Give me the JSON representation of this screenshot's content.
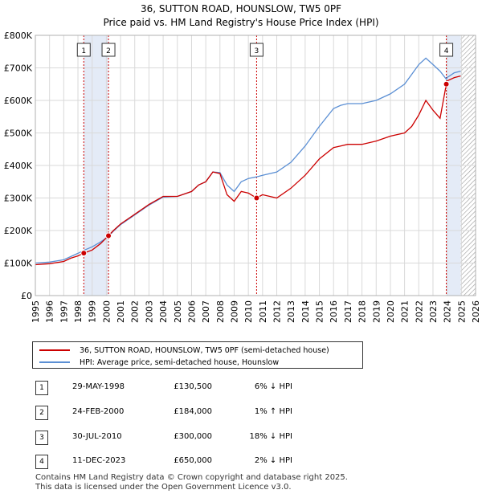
{
  "title": "36, SUTTON ROAD, HOUNSLOW, TW5 0PF",
  "subtitle": "Price paid vs. HM Land Registry's House Price Index (HPI)",
  "chart_data": {
    "type": "line",
    "title": "36, SUTTON ROAD, HOUNSLOW, TW5 0PF",
    "xlim": [
      1995,
      2026
    ],
    "ylim": [
      0,
      800000
    ],
    "x_ticks": [
      1995,
      1996,
      1997,
      1998,
      1999,
      2000,
      2001,
      2002,
      2003,
      2004,
      2005,
      2006,
      2007,
      2008,
      2009,
      2010,
      2011,
      2012,
      2013,
      2014,
      2015,
      2016,
      2017,
      2018,
      2019,
      2020,
      2021,
      2022,
      2023,
      2024,
      2025,
      2026
    ],
    "x_tick_labels": [
      "1995",
      "1996",
      "1997",
      "1998",
      "1999",
      "2000",
      "2001",
      "2002",
      "2003",
      "2004",
      "2005",
      "2006",
      "2007",
      "2008",
      "2009",
      "2010",
      "2011",
      "2012",
      "2013",
      "2014",
      "2015",
      "2016",
      "2017",
      "2018",
      "2019",
      "2020",
      "2021",
      "2022",
      "2023",
      "2024",
      "2025",
      "2026"
    ],
    "y_ticks": [
      0,
      100000,
      200000,
      300000,
      400000,
      500000,
      600000,
      700000,
      800000
    ],
    "y_tick_labels": [
      "£0",
      "£100K",
      "£200K",
      "£300K",
      "£400K",
      "£500K",
      "£600K",
      "£700K",
      "£800K"
    ],
    "grid": true,
    "series": [
      {
        "name": "36, SUTTON ROAD, HOUNSLOW, TW5 0PF (semi-detached house)",
        "color": "#cc0000",
        "x": [
          1995.0,
          1996.0,
          1997.0,
          1997.5,
          1998.0,
          1998.41,
          1999.0,
          1999.6,
          2000.15,
          2000.5,
          2001.0,
          2002.0,
          2003.0,
          2004.0,
          2005.0,
          2006.0,
          2006.5,
          2007.0,
          2007.5,
          2008.0,
          2008.5,
          2009.0,
          2009.5,
          2010.0,
          2010.58,
          2011.0,
          2012.0,
          2013.0,
          2014.0,
          2015.0,
          2016.0,
          2016.5,
          2017.0,
          2018.0,
          2019.0,
          2020.0,
          2021.0,
          2021.5,
          2022.0,
          2022.5,
          2023.0,
          2023.5,
          2023.94,
          2024.0,
          2024.5,
          2024.95
        ],
        "y": [
          95000,
          98000,
          105000,
          115000,
          122000,
          130500,
          140000,
          160000,
          184000,
          200000,
          220000,
          250000,
          280000,
          305000,
          305000,
          320000,
          340000,
          350000,
          380000,
          375000,
          310000,
          290000,
          320000,
          315000,
          300000,
          310000,
          300000,
          330000,
          370000,
          420000,
          455000,
          460000,
          465000,
          465000,
          475000,
          490000,
          500000,
          520000,
          555000,
          600000,
          570000,
          545000,
          650000,
          660000,
          670000,
          675000
        ]
      },
      {
        "name": "HPI: Average price, semi-detached house, Hounslow",
        "color": "#5b8fd4",
        "x": [
          1995.0,
          1996.0,
          1997.0,
          1997.5,
          1998.0,
          1998.41,
          1999.0,
          1999.6,
          2000.15,
          2000.5,
          2001.0,
          2002.0,
          2003.0,
          2004.0,
          2005.0,
          2006.0,
          2006.5,
          2007.0,
          2007.5,
          2008.0,
          2008.5,
          2009.0,
          2009.5,
          2010.0,
          2010.58,
          2011.0,
          2012.0,
          2013.0,
          2014.0,
          2015.0,
          2016.0,
          2016.5,
          2017.0,
          2018.0,
          2019.0,
          2020.0,
          2021.0,
          2021.5,
          2022.0,
          2022.5,
          2023.0,
          2023.5,
          2023.94,
          2024.0,
          2024.5,
          2024.95
        ],
        "y": [
          100000,
          103000,
          110000,
          120000,
          130000,
          139000,
          150000,
          165000,
          182000,
          198000,
          218000,
          248000,
          278000,
          303000,
          305000,
          320000,
          340000,
          350000,
          380000,
          378000,
          340000,
          320000,
          350000,
          360000,
          365000,
          370000,
          380000,
          410000,
          460000,
          520000,
          575000,
          585000,
          590000,
          590000,
          600000,
          620000,
          650000,
          680000,
          710000,
          730000,
          710000,
          690000,
          665000,
          670000,
          685000,
          690000
        ]
      }
    ],
    "sales": [
      {
        "label": "1",
        "x": 1998.41,
        "y": 130500
      },
      {
        "label": "2",
        "x": 2000.15,
        "y": 184000
      },
      {
        "label": "3",
        "x": 2010.58,
        "y": 300000
      },
      {
        "label": "4",
        "x": 2023.94,
        "y": 650000
      }
    ],
    "shaded_ranges": [
      [
        1998.41,
        2000.15
      ],
      [
        2023.94,
        2024.95
      ]
    ],
    "hatched_from": 2024.95
  },
  "legend": {
    "items": [
      {
        "label": "36, SUTTON ROAD, HOUNSLOW, TW5 0PF (semi-detached house)",
        "color": "#cc0000"
      },
      {
        "label": "HPI: Average price, semi-detached house, Hounslow",
        "color": "#5b8fd4"
      }
    ]
  },
  "transactions": [
    {
      "num": "1",
      "date": "29-MAY-1998",
      "price": "£130,500",
      "hpi": "6% ↓ HPI"
    },
    {
      "num": "2",
      "date": "24-FEB-2000",
      "price": "£184,000",
      "hpi": "1% ↑ HPI"
    },
    {
      "num": "3",
      "date": "30-JUL-2010",
      "price": "£300,000",
      "hpi": "18% ↓ HPI"
    },
    {
      "num": "4",
      "date": "11-DEC-2023",
      "price": "£650,000",
      "hpi": "2% ↓ HPI"
    }
  ],
  "footer": {
    "line1": "Contains HM Land Registry data © Crown copyright and database right 2025.",
    "line2": "This data is licensed under the Open Government Licence v3.0."
  }
}
